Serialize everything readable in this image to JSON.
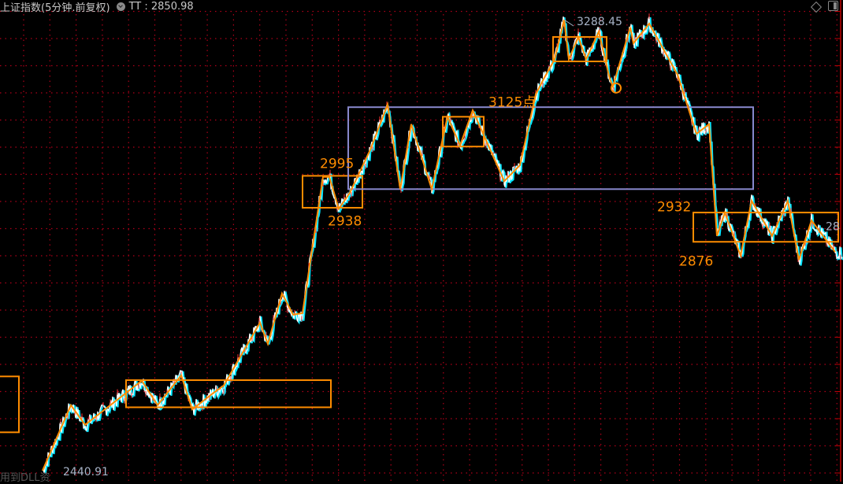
{
  "header": {
    "title": "上证指数(5分钟.前复权)",
    "indicator_label": "TT",
    "indicator_sep": " : ",
    "indicator_value": "2850.98"
  },
  "footer": {
    "text": "用到DLL资"
  },
  "icons": [
    "diamond-icon",
    "panel-toggle-icon"
  ],
  "colors": {
    "background": "#000000",
    "grid": "#b0001a",
    "annotation": "#ff8c00",
    "range_box": "#8888cc",
    "price_up": "#ff3030",
    "price_main": "#ffffff",
    "price_alt": "#00e5ff",
    "axis": "#c00000",
    "label_gray": "#a8b4c8"
  },
  "chart_data": {
    "type": "line",
    "title": "上证指数(5分钟.前复权)",
    "x_unit": "bar",
    "xlim": [
      0,
      535
    ],
    "ylim": [
      2428,
      3303
    ],
    "grid": true,
    "series": [
      {
        "name": "TT",
        "points": [
          [
            27,
            2440.91
          ],
          [
            45,
            2564
          ],
          [
            54,
            2527
          ],
          [
            90,
            2610
          ],
          [
            100,
            2564
          ],
          [
            115,
            2620
          ],
          [
            122,
            2556
          ],
          [
            135,
            2586
          ],
          [
            142,
            2601
          ],
          [
            165,
            2719
          ],
          [
            170,
            2679
          ],
          [
            179,
            2774
          ],
          [
            186,
            2734
          ],
          [
            192,
            2737
          ],
          [
            205,
            2993
          ],
          [
            209,
            2993
          ],
          [
            215,
            2933
          ],
          [
            222,
            2963
          ],
          [
            235,
            3044
          ],
          [
            246,
            3129
          ],
          [
            254,
            2970
          ],
          [
            261,
            3092
          ],
          [
            274,
            2970
          ],
          [
            284,
            3106
          ],
          [
            292,
            3052
          ],
          [
            300,
            3118
          ],
          [
            320,
            2985
          ],
          [
            330,
            3015
          ],
          [
            340,
            3148
          ],
          [
            345,
            3177
          ],
          [
            352,
            3214
          ],
          [
            358,
            3288.45
          ],
          [
            361,
            3214
          ],
          [
            367,
            3256
          ],
          [
            372,
            3214
          ],
          [
            380,
            3266
          ],
          [
            387,
            3177
          ],
          [
            389,
            3163
          ],
          [
            400,
            3274
          ],
          [
            402,
            3244
          ],
          [
            412,
            3281
          ],
          [
            430,
            3185
          ],
          [
            442,
            3074
          ],
          [
            450,
            3092
          ],
          [
            455,
            2882
          ],
          [
            460,
            2926
          ],
          [
            470,
            2845
          ],
          [
            477,
            2948
          ],
          [
            490,
            2882
          ],
          [
            500,
            2948
          ],
          [
            507,
            2837
          ],
          [
            515,
            2911
          ],
          [
            530,
            2852
          ],
          [
            535,
            2850.98
          ]
        ]
      }
    ],
    "zigzag": [
      [
        27,
        2440.91
      ],
      [
        45,
        2564
      ],
      [
        54,
        2527
      ],
      [
        90,
        2610
      ],
      [
        100,
        2564
      ],
      [
        115,
        2620
      ],
      [
        122,
        2556
      ],
      [
        135,
        2586
      ],
      [
        142,
        2601
      ],
      [
        165,
        2719
      ],
      [
        170,
        2679
      ],
      [
        179,
        2774
      ],
      [
        186,
        2734
      ],
      [
        192,
        2737
      ],
      [
        205,
        2993
      ],
      [
        209,
        2993
      ],
      [
        215,
        2933
      ],
      [
        222,
        2963
      ],
      [
        235,
        3044
      ],
      [
        246,
        3129
      ],
      [
        254,
        2970
      ],
      [
        261,
        3092
      ],
      [
        274,
        2970
      ],
      [
        284,
        3106
      ],
      [
        292,
        3052
      ],
      [
        300,
        3118
      ],
      [
        320,
        2985
      ],
      [
        330,
        3015
      ],
      [
        340,
        3148
      ],
      [
        345,
        3177
      ],
      [
        352,
        3214
      ],
      [
        358,
        3288.45
      ],
      [
        361,
        3214
      ],
      [
        367,
        3256
      ],
      [
        372,
        3214
      ],
      [
        380,
        3266
      ],
      [
        387,
        3177
      ],
      [
        389,
        3163
      ],
      [
        400,
        3274
      ],
      [
        402,
        3244
      ],
      [
        412,
        3281
      ],
      [
        430,
        3185
      ],
      [
        442,
        3074
      ],
      [
        450,
        3092
      ],
      [
        455,
        2882
      ],
      [
        460,
        2926
      ],
      [
        470,
        2845
      ],
      [
        477,
        2948
      ],
      [
        490,
        2882
      ],
      [
        500,
        2948
      ],
      [
        507,
        2837
      ],
      [
        515,
        2911
      ],
      [
        530,
        2852
      ]
    ],
    "boxes": [
      {
        "kind": "consolidation",
        "x": [
          -3,
          12
        ],
        "y": [
          2513,
          2618
        ]
      },
      {
        "kind": "consolidation",
        "x": [
          80,
          210
        ],
        "y": [
          2560,
          2611
        ]
      },
      {
        "kind": "consolidation",
        "x": [
          192,
          230
        ],
        "y": [
          2935,
          2995
        ]
      },
      {
        "kind": "range",
        "x": [
          221,
          478
        ],
        "y": [
          2970,
          3124
        ]
      },
      {
        "kind": "consolidation",
        "x": [
          281,
          307
        ],
        "y": [
          3050,
          3106
        ]
      },
      {
        "kind": "consolidation",
        "x": [
          351,
          385
        ],
        "y": [
          3210,
          3256
        ]
      },
      {
        "kind": "consolidation",
        "x": [
          440,
          532
        ],
        "y": [
          2871,
          2926
        ]
      }
    ],
    "markers": [
      {
        "kind": "circle",
        "x": 391,
        "y": 3160
      },
      {
        "kind": "up-arrow",
        "x": 170,
        "y": 2620
      }
    ],
    "annotations": [
      {
        "text": "3288.45",
        "x": 366,
        "y": 3278,
        "color": "gray"
      },
      {
        "text": "3125点",
        "x": 310,
        "y": 3125,
        "color": "orange"
      },
      {
        "text": "2995",
        "x": 203,
        "y": 3010,
        "color": "orange"
      },
      {
        "text": "2938",
        "x": 208,
        "y": 2902,
        "color": "orange"
      },
      {
        "text": "2932",
        "x": 417,
        "y": 2928,
        "color": "orange"
      },
      {
        "text": "2876",
        "x": 431,
        "y": 2826,
        "color": "orange"
      },
      {
        "text": "28",
        "x": 524,
        "y": 2893,
        "color": "gray"
      },
      {
        "text": "2440.91",
        "x": 40,
        "y": 2432,
        "color": "gray"
      }
    ]
  }
}
